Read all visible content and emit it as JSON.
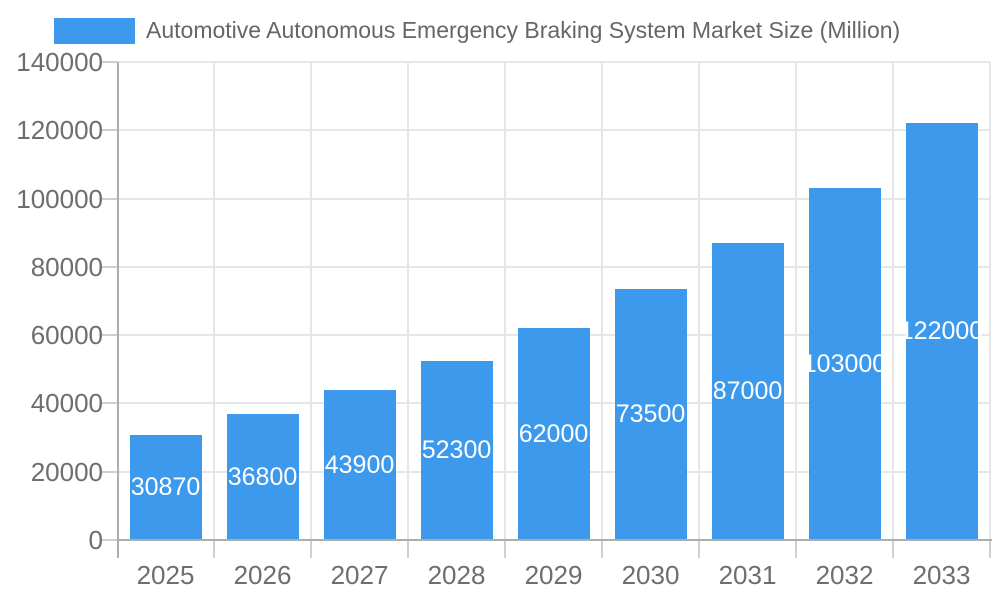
{
  "legend": {
    "swatch_color": "#3C99EC"
  },
  "chart_data": {
    "type": "bar",
    "title": "Automotive Autonomous Emergency Braking System Market Size (Million)",
    "xlabel": "",
    "ylabel": "",
    "categories": [
      "2025",
      "2026",
      "2027",
      "2028",
      "2029",
      "2030",
      "2031",
      "2032",
      "2033"
    ],
    "values": [
      30870,
      36800,
      43900,
      52300,
      62000,
      73500,
      87000,
      103000,
      122000
    ],
    "ylim": [
      0,
      140000
    ],
    "yticks": [
      0,
      20000,
      40000,
      60000,
      80000,
      100000,
      120000,
      140000
    ],
    "grid": true,
    "legend_position": "top-left",
    "bar_color": "#3C99EC",
    "value_label_color": "#FFFFFF"
  },
  "colors": {
    "background": "#FFFFFF",
    "bar": "#3C99EC",
    "gridline": "#E6E6E6",
    "axis_line": "#ADADAD",
    "tick": "#CFCFCF",
    "axis_text": "#6E6E6E",
    "title_text": "#666666"
  }
}
